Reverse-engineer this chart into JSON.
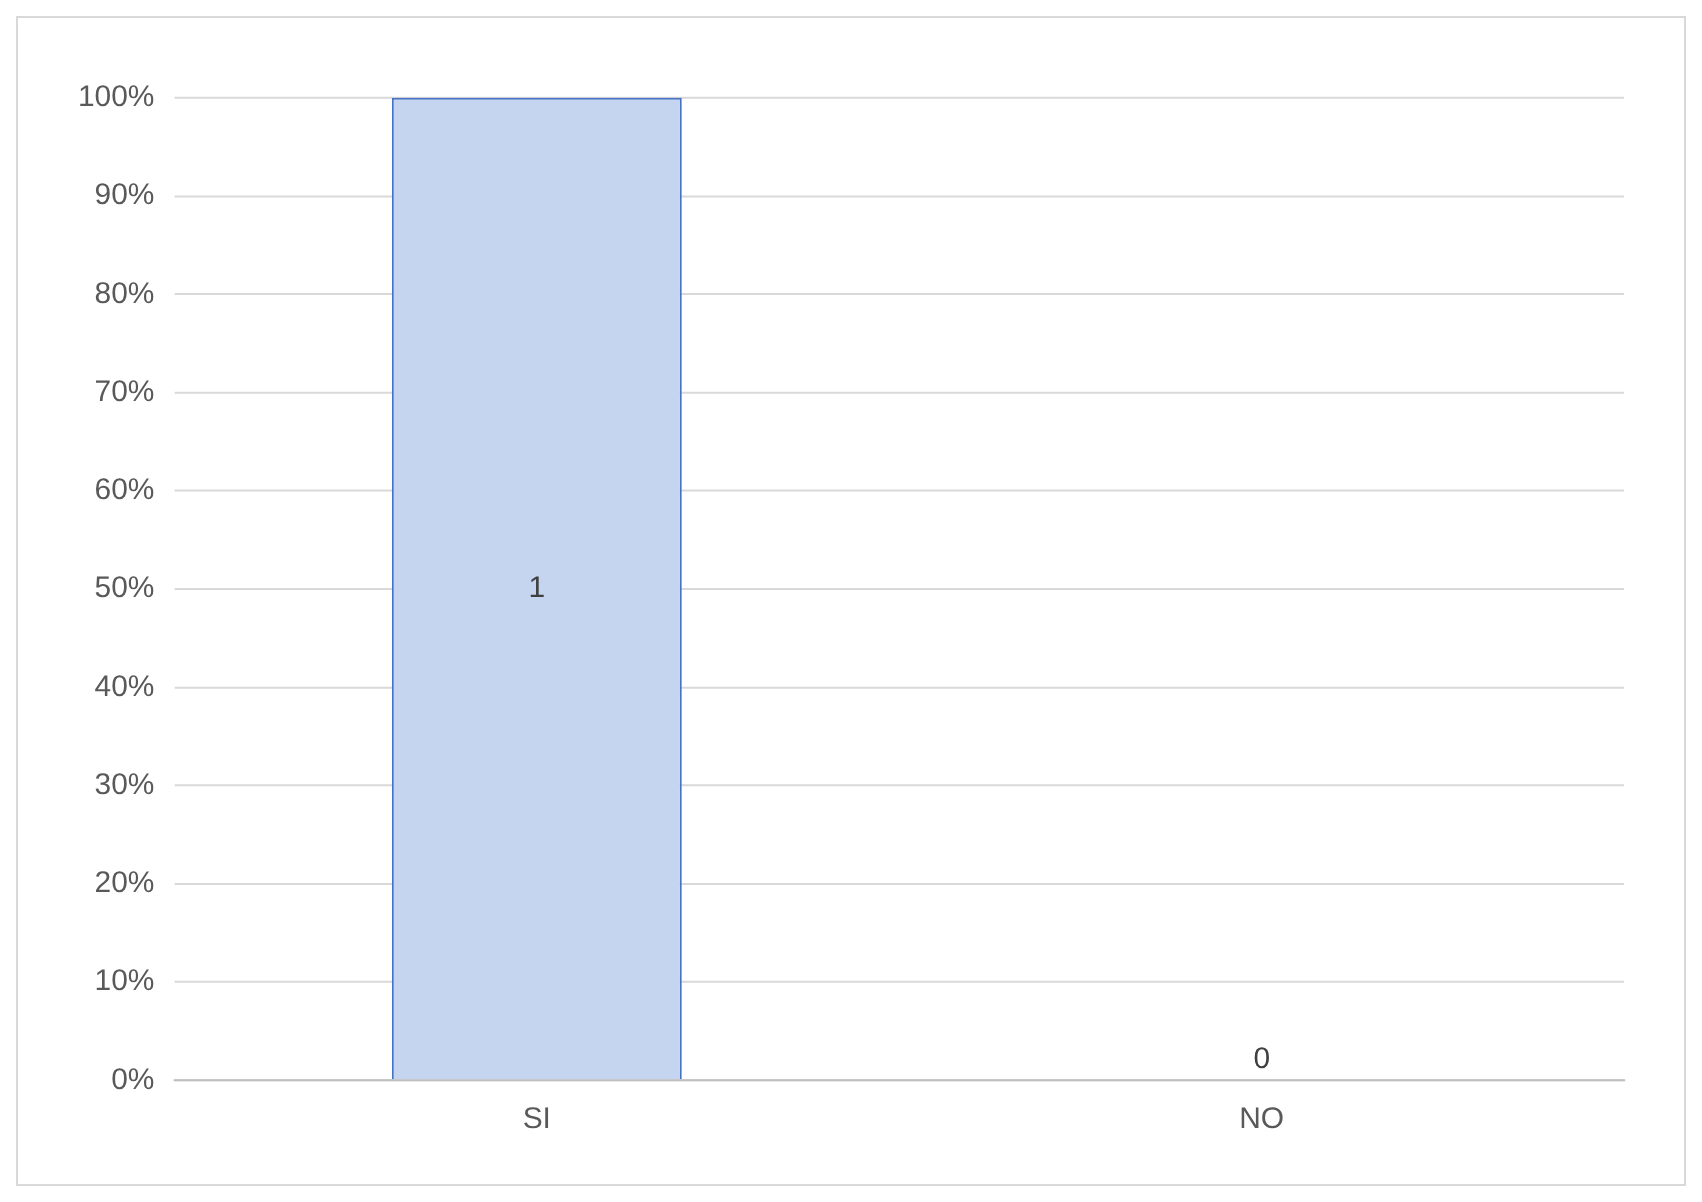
{
  "chart_data": {
    "type": "bar",
    "categories": [
      "SI",
      "NO"
    ],
    "values": [
      1,
      0
    ],
    "colors": [
      "#c5d5f0",
      "#5b2c8c"
    ],
    "data_labels": true,
    "ylim": [
      0,
      1
    ],
    "yticks": [
      {
        "value": 0,
        "label": "0%"
      },
      {
        "value": 0.1,
        "label": "10%"
      },
      {
        "value": 0.2,
        "label": "20%"
      },
      {
        "value": 0.3,
        "label": "30%"
      },
      {
        "value": 0.4,
        "label": "40%"
      },
      {
        "value": 0.5,
        "label": "50%"
      },
      {
        "value": 0.6,
        "label": "60%"
      },
      {
        "value": 0.7,
        "label": "70%"
      },
      {
        "value": 0.8,
        "label": "80%"
      },
      {
        "value": 0.9,
        "label": "90%"
      },
      {
        "value": 1,
        "label": "100%"
      }
    ],
    "grid": "y"
  }
}
